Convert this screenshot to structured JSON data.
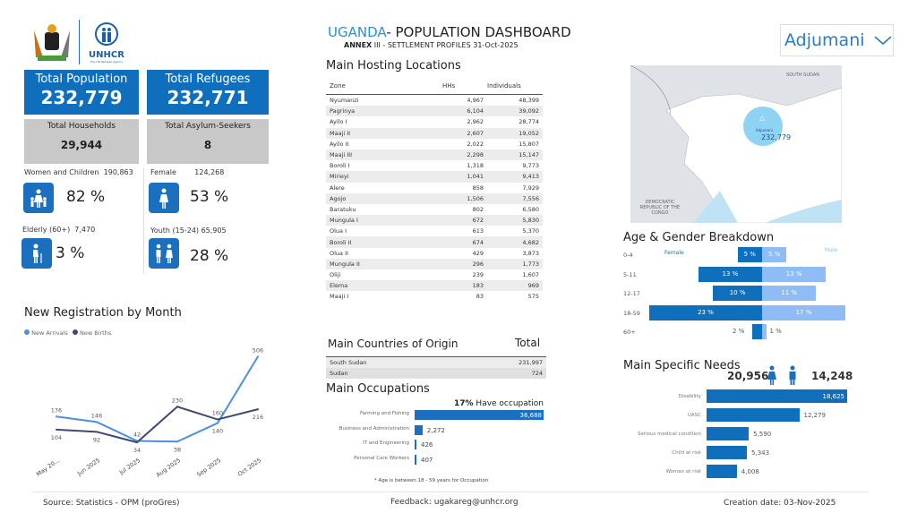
{
  "header": {
    "title_accent": "UGANDA",
    "title_rest": "- POPULATION DASHBOARD",
    "subtitle_bold": "ANNEX",
    "subtitle_rest": " III - SETTLEMENT PROFILES 31-Oct-2025",
    "logo_text": "UNHCR",
    "logo_sub": "The UN Refugee Agency"
  },
  "filter": {
    "selected": "Adjumani"
  },
  "kpis": {
    "total_population": {
      "label": "Total Population",
      "value": "232,779"
    },
    "total_refugees": {
      "label": "Total Refugees",
      "value": "232,771"
    },
    "total_households": {
      "label": "Total Households",
      "value": "29,944"
    },
    "total_asylum": {
      "label": "Total Asylum-Seekers",
      "value": "8"
    }
  },
  "demographics": {
    "women_children": {
      "label": "Women and Children",
      "count": "190,863",
      "pct": "82 %"
    },
    "female": {
      "label": "Female",
      "count": "124,268",
      "pct": "53 %"
    },
    "elderly": {
      "label": "Elderly (60+)",
      "count": "7,470",
      "pct": "3 %"
    },
    "youth": {
      "label": "Youth (15-24)",
      "count": "65,905",
      "pct": "28 %"
    }
  },
  "registration": {
    "title": "New Registration by Month",
    "chart_data": {
      "type": "line",
      "categories": [
        "May 20...",
        "Jun 2025",
        "Jul 2025",
        "Aug 2025",
        "Sep 2025",
        "Oct 2025"
      ],
      "series": [
        {
          "name": "New Arrivals",
          "color": "#4a90e2",
          "values": [
            176,
            146,
            42,
            38,
            140,
            506
          ]
        },
        {
          "name": "New Births",
          "color": "#3c4a73",
          "values": [
            104,
            92,
            34,
            230,
            160,
            216
          ]
        }
      ],
      "legend": "top-left",
      "grid": false
    }
  },
  "hosting": {
    "title": "Main Hosting Locations",
    "columns": [
      "Zone",
      "HHs",
      "Individuals"
    ],
    "rows": [
      [
        "Nyumanzi",
        "4,967",
        "48,399"
      ],
      [
        "Pagrinya",
        "6,104",
        "39,092"
      ],
      [
        "Ayilo I",
        "2,962",
        "28,774"
      ],
      [
        "Maaji II",
        "2,607",
        "19,052"
      ],
      [
        "Ayilo II",
        "2,022",
        "15,807"
      ],
      [
        "Maaji III",
        "2,298",
        "15,147"
      ],
      [
        "Boroli I",
        "1,318",
        "9,773"
      ],
      [
        "Mirieyi",
        "1,041",
        "9,413"
      ],
      [
        "Alere",
        "858",
        "7,929"
      ],
      [
        "Agojo",
        "1,506",
        "7,556"
      ],
      [
        "Baratuku",
        "802",
        "6,580"
      ],
      [
        "Mungula I",
        "672",
        "5,830"
      ],
      [
        "Olua I",
        "613",
        "5,370"
      ],
      [
        "Boroli II",
        "674",
        "4,682"
      ],
      [
        "Olua II",
        "429",
        "3,873"
      ],
      [
        "Mungula II",
        "296",
        "1,773"
      ],
      [
        "Oliji",
        "239",
        "1,607"
      ],
      [
        "Elema",
        "183",
        "969"
      ],
      [
        "Maaji I",
        "83",
        "575"
      ]
    ]
  },
  "origin": {
    "title": "Main Countries of Origin",
    "total_label": "Total",
    "rows": [
      [
        "South Sudan",
        "231,997"
      ],
      [
        "Sudan",
        "724"
      ]
    ]
  },
  "occupations": {
    "title": "Main Occupations",
    "pct": "17%",
    "pct_label": "Have occupation",
    "footnote": "* Age is between 18 - 59 years for Occupation",
    "chart_data": {
      "type": "bar",
      "categories": [
        "Farming and Fishing",
        "Business and Administration",
        "IT and Engineering",
        "Personal Care Workers"
      ],
      "values": [
        36688,
        2272,
        426,
        407
      ],
      "labels": [
        "36,688",
        "2,272",
        "426",
        "407"
      ]
    }
  },
  "map": {
    "country_label_1": "SOUTH SUDAN",
    "country_label_2": "DEMOCRATIC REPUBLIC OF THE CONGO",
    "marker_name": "Adjumani",
    "marker_value": "232,779"
  },
  "age_gender": {
    "title": "Age & Gender Breakdown",
    "chart_data": {
      "type": "bar",
      "categories": [
        "0-4",
        "5-11",
        "12-17",
        "18-59",
        "60+"
      ],
      "series": [
        {
          "name": "Female",
          "color": "#0f6fbd",
          "values": [
            5,
            13,
            10,
            23,
            2
          ]
        },
        {
          "name": "Male",
          "color": "#8fbcf5",
          "values": [
            5,
            13,
            11,
            17,
            1
          ]
        }
      ]
    }
  },
  "needs": {
    "title": "Main Specific Needs",
    "female_total": "20,956",
    "male_total": "14,248",
    "chart_data": {
      "type": "bar",
      "categories": [
        "Disability",
        "UASC",
        "Serious medical condition",
        "Child at risk",
        "Woman at risk"
      ],
      "values": [
        18625,
        12279,
        5590,
        5343,
        4008
      ],
      "labels": [
        "18,625",
        "12,279",
        "5,590",
        "5,343",
        "4,008"
      ]
    }
  },
  "footer": {
    "source": "Source: Statistics - OPM (proGres)",
    "feedback": "Feedback: ugakareg@unhcr.org",
    "created": "Creation date: 03-Nov-2025"
  }
}
